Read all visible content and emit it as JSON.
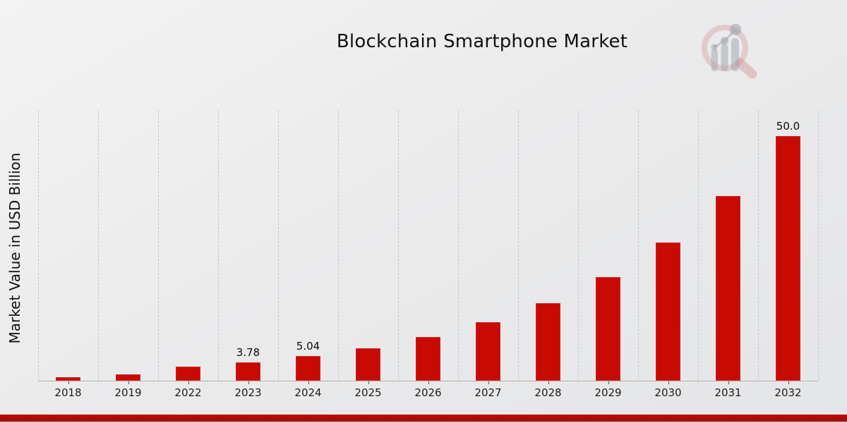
{
  "header": {
    "title": "Blockchain Smartphone Market"
  },
  "watermark": {
    "icon": "magnifier-bar-chart-logo-icon",
    "ring_color": "rgba(202,128,128,0.33)",
    "bars_color": "rgba(158,164,173,0.50)"
  },
  "chart_data": {
    "type": "bar",
    "title": "Blockchain Smartphone Market",
    "xlabel": "",
    "ylabel": "Market Value in USD Billion",
    "legend": "none",
    "grid": "vertical-dashed",
    "gridline_color": "#c6c7c9",
    "bar_color": "#c80a05",
    "ylim": [
      0,
      55.2
    ],
    "categories": [
      "2018",
      "2019",
      "2022",
      "2023",
      "2024",
      "2025",
      "2026",
      "2027",
      "2028",
      "2029",
      "2030",
      "2031",
      "2032"
    ],
    "values": [
      0.7,
      1.3,
      2.84,
      3.78,
      5.04,
      6.6,
      8.9,
      11.9,
      15.9,
      21.2,
      28.3,
      37.7,
      50.0
    ],
    "value_labels": [
      "",
      "",
      "",
      "3.78",
      "5.04",
      "",
      "",
      "",
      "",
      "",
      "",
      "",
      "50.0"
    ]
  },
  "footer": {
    "strip_color": "#b30909"
  }
}
